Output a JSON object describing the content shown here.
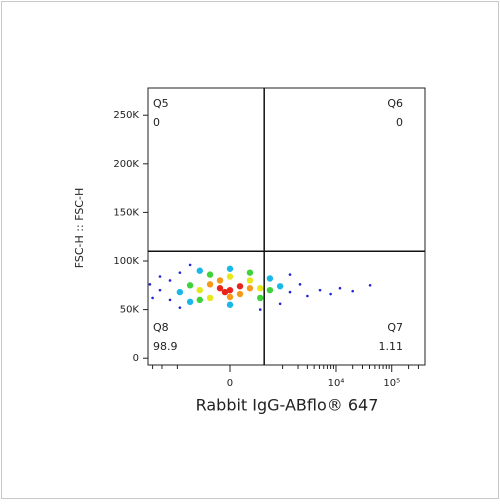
{
  "chart_data": {
    "type": "scatter",
    "x_label": "Rabbit IgG-ABflo® 647",
    "y_label": "FSC-H :: FSC-H",
    "xscale": "biexponential",
    "xlim": [
      -3650,
      393000
    ],
    "ylim": [
      -7000,
      278000
    ],
    "xticks": [
      0,
      {
        "value": 10000,
        "label": "10⁴"
      },
      {
        "value": 100000,
        "label": "10⁵"
      }
    ],
    "xminorticks": [
      -3000,
      -2000,
      -1000,
      1000,
      2000,
      3000,
      4000,
      5000,
      6000,
      7000,
      8000,
      9000,
      20000,
      30000,
      40000,
      50000,
      60000,
      70000,
      80000,
      90000,
      200000,
      300000
    ],
    "yticks": [
      0,
      {
        "value": 50000,
        "label": "50K"
      },
      {
        "value": 100000,
        "label": "100K"
      },
      {
        "value": 150000,
        "label": "150K"
      },
      {
        "value": 200000,
        "label": "200K"
      },
      {
        "value": 250000,
        "label": "250K"
      }
    ],
    "gates": {
      "x": 400,
      "y": 110000
    },
    "quadrants": [
      {
        "name": "Q5",
        "value": 0,
        "corner": "top-left"
      },
      {
        "name": "Q6",
        "value": 0,
        "corner": "top-right"
      },
      {
        "name": "Q7",
        "value": 1.11,
        "corner": "bottom-right"
      },
      {
        "name": "Q8",
        "value": 98.9,
        "corner": "bottom-left"
      }
    ],
    "series": [
      {
        "color": "#2424d8",
        "x": [
          -3370,
          -2180,
          -1400,
          -1400,
          -890,
          -890,
          1400,
          2180,
          5130,
          11800,
          41000,
          -2180,
          890,
          1400,
          -540,
          320,
          3000,
          8000,
          20000,
          -3000
        ],
        "y": [
          76000,
          70000,
          80000,
          60000,
          88000,
          52000,
          68000,
          76000,
          70000,
          72000,
          75000,
          84000,
          56000,
          86000,
          96000,
          50000,
          64000,
          66000,
          69000,
          62000
        ]
      },
      {
        "color": "#1ab8e8",
        "x": [
          -890,
          890,
          -540,
          540,
          -320,
          0,
          0
        ],
        "y": [
          68000,
          74000,
          58000,
          82000,
          90000,
          55000,
          92000
        ]
      },
      {
        "color": "#3fd23a",
        "x": [
          -540,
          540,
          -320,
          320,
          -165,
          165
        ],
        "y": [
          75000,
          70000,
          60000,
          62000,
          86000,
          88000
        ]
      },
      {
        "color": "#e6e81a",
        "x": [
          -320,
          320,
          -165,
          165,
          0
        ],
        "y": [
          70000,
          72000,
          62000,
          80000,
          84000
        ]
      },
      {
        "color": "#f59a1a",
        "x": [
          -165,
          66,
          165,
          -66,
          0
        ],
        "y": [
          76000,
          66000,
          72000,
          80000,
          63000
        ]
      },
      {
        "color": "#e8231b",
        "x": [
          -66,
          0,
          66,
          -30
        ],
        "y": [
          72000,
          70000,
          74000,
          68000
        ]
      }
    ]
  }
}
